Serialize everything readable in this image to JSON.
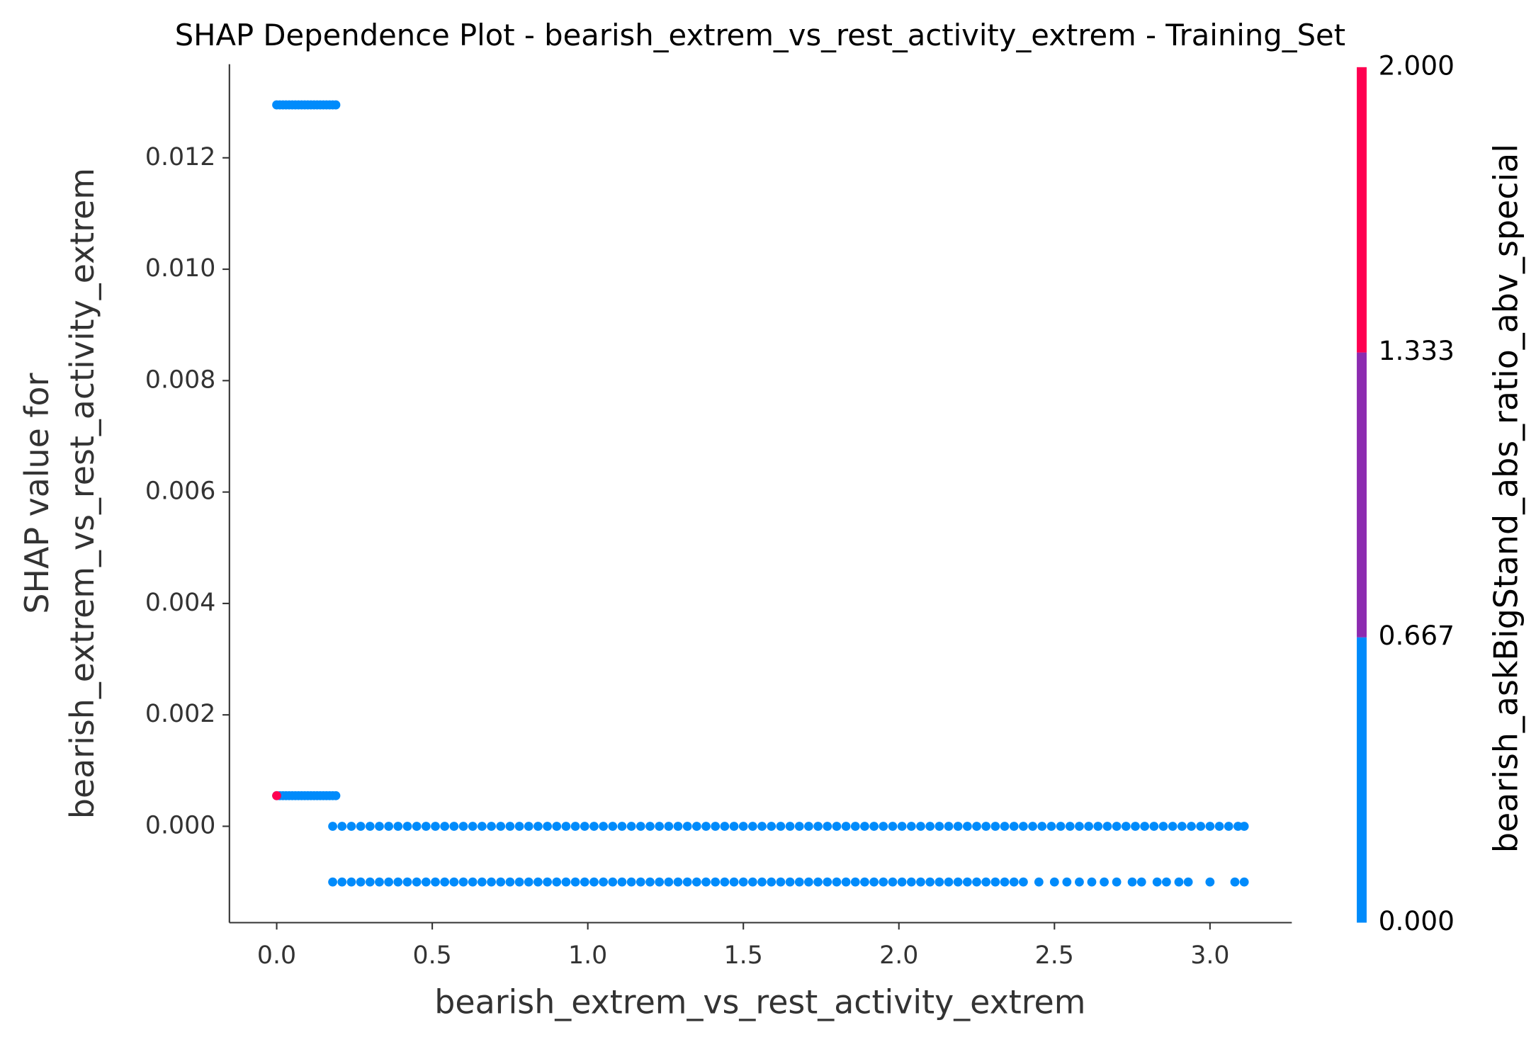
{
  "chart_data": {
    "type": "scatter",
    "title": "SHAP Dependence Plot - bearish_extrem_vs_rest_activity_extrem - Training_Set",
    "xlabel": "bearish_extrem_vs_rest_activity_extrem",
    "ylabel": [
      "SHAP value for",
      "bearish_extrem_vs_rest_activity_extrem"
    ],
    "xlim": [
      -0.152,
      3.263
    ],
    "ylim": [
      -0.00173,
      0.01368
    ],
    "xticks": [
      {
        "value": 0,
        "label": "0.0"
      },
      0.5,
      {
        "value": 1,
        "label": "1.0"
      },
      1.5,
      {
        "value": 2,
        "label": "2.0"
      },
      2.5,
      {
        "value": 3,
        "label": "3.0"
      }
    ],
    "yticks": [
      {
        "value": 0,
        "label": "0.000"
      },
      {
        "value": 0.002,
        "label": "0.002"
      },
      {
        "value": 0.004,
        "label": "0.004"
      },
      {
        "value": 0.006,
        "label": "0.006"
      },
      {
        "value": 0.008,
        "label": "0.008"
      },
      {
        "value": 0.01,
        "label": "0.010"
      },
      {
        "value": 0.012,
        "label": "0.012"
      }
    ],
    "series": [
      {
        "color": "#008bfb",
        "y": 0.01295,
        "x": [
          0,
          0.01,
          0.02,
          0.03,
          0.04,
          0.05,
          0.06,
          0.07,
          0.08,
          0.09,
          0.1,
          0.11,
          0.12,
          0.13,
          0.14,
          0.15,
          0.16,
          0.17,
          0.18,
          0.19
        ]
      },
      {
        "color": "#008bfb",
        "y": 0.00055,
        "x": [
          0,
          0.01,
          0.02,
          0.03,
          0.04,
          0.05,
          0.06,
          0.07,
          0.08,
          0.09,
          0.1,
          0.11,
          0.12,
          0.13,
          0.14,
          0.15,
          0.16,
          0.17,
          0.18,
          0.19
        ]
      },
      {
        "color": "#ff0051",
        "y": 0.00055,
        "x": [
          0
        ]
      },
      {
        "color": "#008bfb",
        "y": 0,
        "x": [
          0.18,
          0.21,
          0.24,
          0.27,
          0.3,
          0.33,
          0.36,
          0.39,
          0.42,
          0.45,
          0.48,
          0.51,
          0.54,
          0.57,
          0.6,
          0.63,
          0.66,
          0.69,
          0.72,
          0.75,
          0.78,
          0.81,
          0.84,
          0.87,
          0.9,
          0.93,
          0.96,
          0.99,
          1.02,
          1.05,
          1.08,
          1.11,
          1.14,
          1.17,
          1.2,
          1.23,
          1.26,
          1.29,
          1.32,
          1.35,
          1.38,
          1.41,
          1.44,
          1.47,
          1.5,
          1.53,
          1.56,
          1.59,
          1.62,
          1.65,
          1.68,
          1.71,
          1.74,
          1.77,
          1.8,
          1.83,
          1.86,
          1.89,
          1.92,
          1.95,
          1.98,
          2.01,
          2.04,
          2.07,
          2.1,
          2.13,
          2.16,
          2.19,
          2.22,
          2.25,
          2.28,
          2.31,
          2.34,
          2.37,
          2.4,
          2.43,
          2.46,
          2.49,
          2.52,
          2.55,
          2.58,
          2.61,
          2.64,
          2.67,
          2.7,
          2.73,
          2.76,
          2.79,
          2.82,
          2.85,
          2.88,
          2.91,
          2.94,
          2.97,
          3,
          3.03,
          3.06,
          3.09,
          3.11
        ]
      },
      {
        "color": "#008bfb",
        "y": -0.001,
        "x": [
          0.18,
          0.21,
          0.24,
          0.27,
          0.3,
          0.33,
          0.36,
          0.39,
          0.42,
          0.45,
          0.48,
          0.51,
          0.54,
          0.57,
          0.6,
          0.63,
          0.66,
          0.69,
          0.72,
          0.75,
          0.78,
          0.81,
          0.84,
          0.87,
          0.9,
          0.93,
          0.96,
          0.99,
          1.02,
          1.05,
          1.08,
          1.11,
          1.14,
          1.17,
          1.2,
          1.23,
          1.26,
          1.29,
          1.32,
          1.35,
          1.38,
          1.41,
          1.44,
          1.47,
          1.5,
          1.53,
          1.56,
          1.59,
          1.62,
          1.65,
          1.68,
          1.71,
          1.74,
          1.77,
          1.8,
          1.83,
          1.86,
          1.89,
          1.92,
          1.95,
          1.98,
          2.01,
          2.04,
          2.07,
          2.1,
          2.13,
          2.16,
          2.19,
          2.22,
          2.25,
          2.28,
          2.31,
          2.34,
          2.37,
          2.4,
          2.45,
          2.5,
          2.54,
          2.58,
          2.62,
          2.66,
          2.7,
          2.75,
          2.78,
          2.83,
          2.86,
          2.9,
          2.93,
          3,
          3.08,
          3.11
        ]
      }
    ],
    "colorbar": {
      "label": "bearish_askBigStand_abs_ratio_abv_special",
      "lim": [
        0,
        2
      ],
      "ticks": [
        {
          "value": 0,
          "label": "0.000"
        },
        {
          "value": 0.667,
          "label": "0.667"
        },
        {
          "value": 1.333,
          "label": "1.333"
        },
        {
          "value": 2,
          "label": "2.000"
        }
      ],
      "colors": [
        "#008bfb",
        "#8c2bb0",
        "#ff0051"
      ]
    }
  }
}
